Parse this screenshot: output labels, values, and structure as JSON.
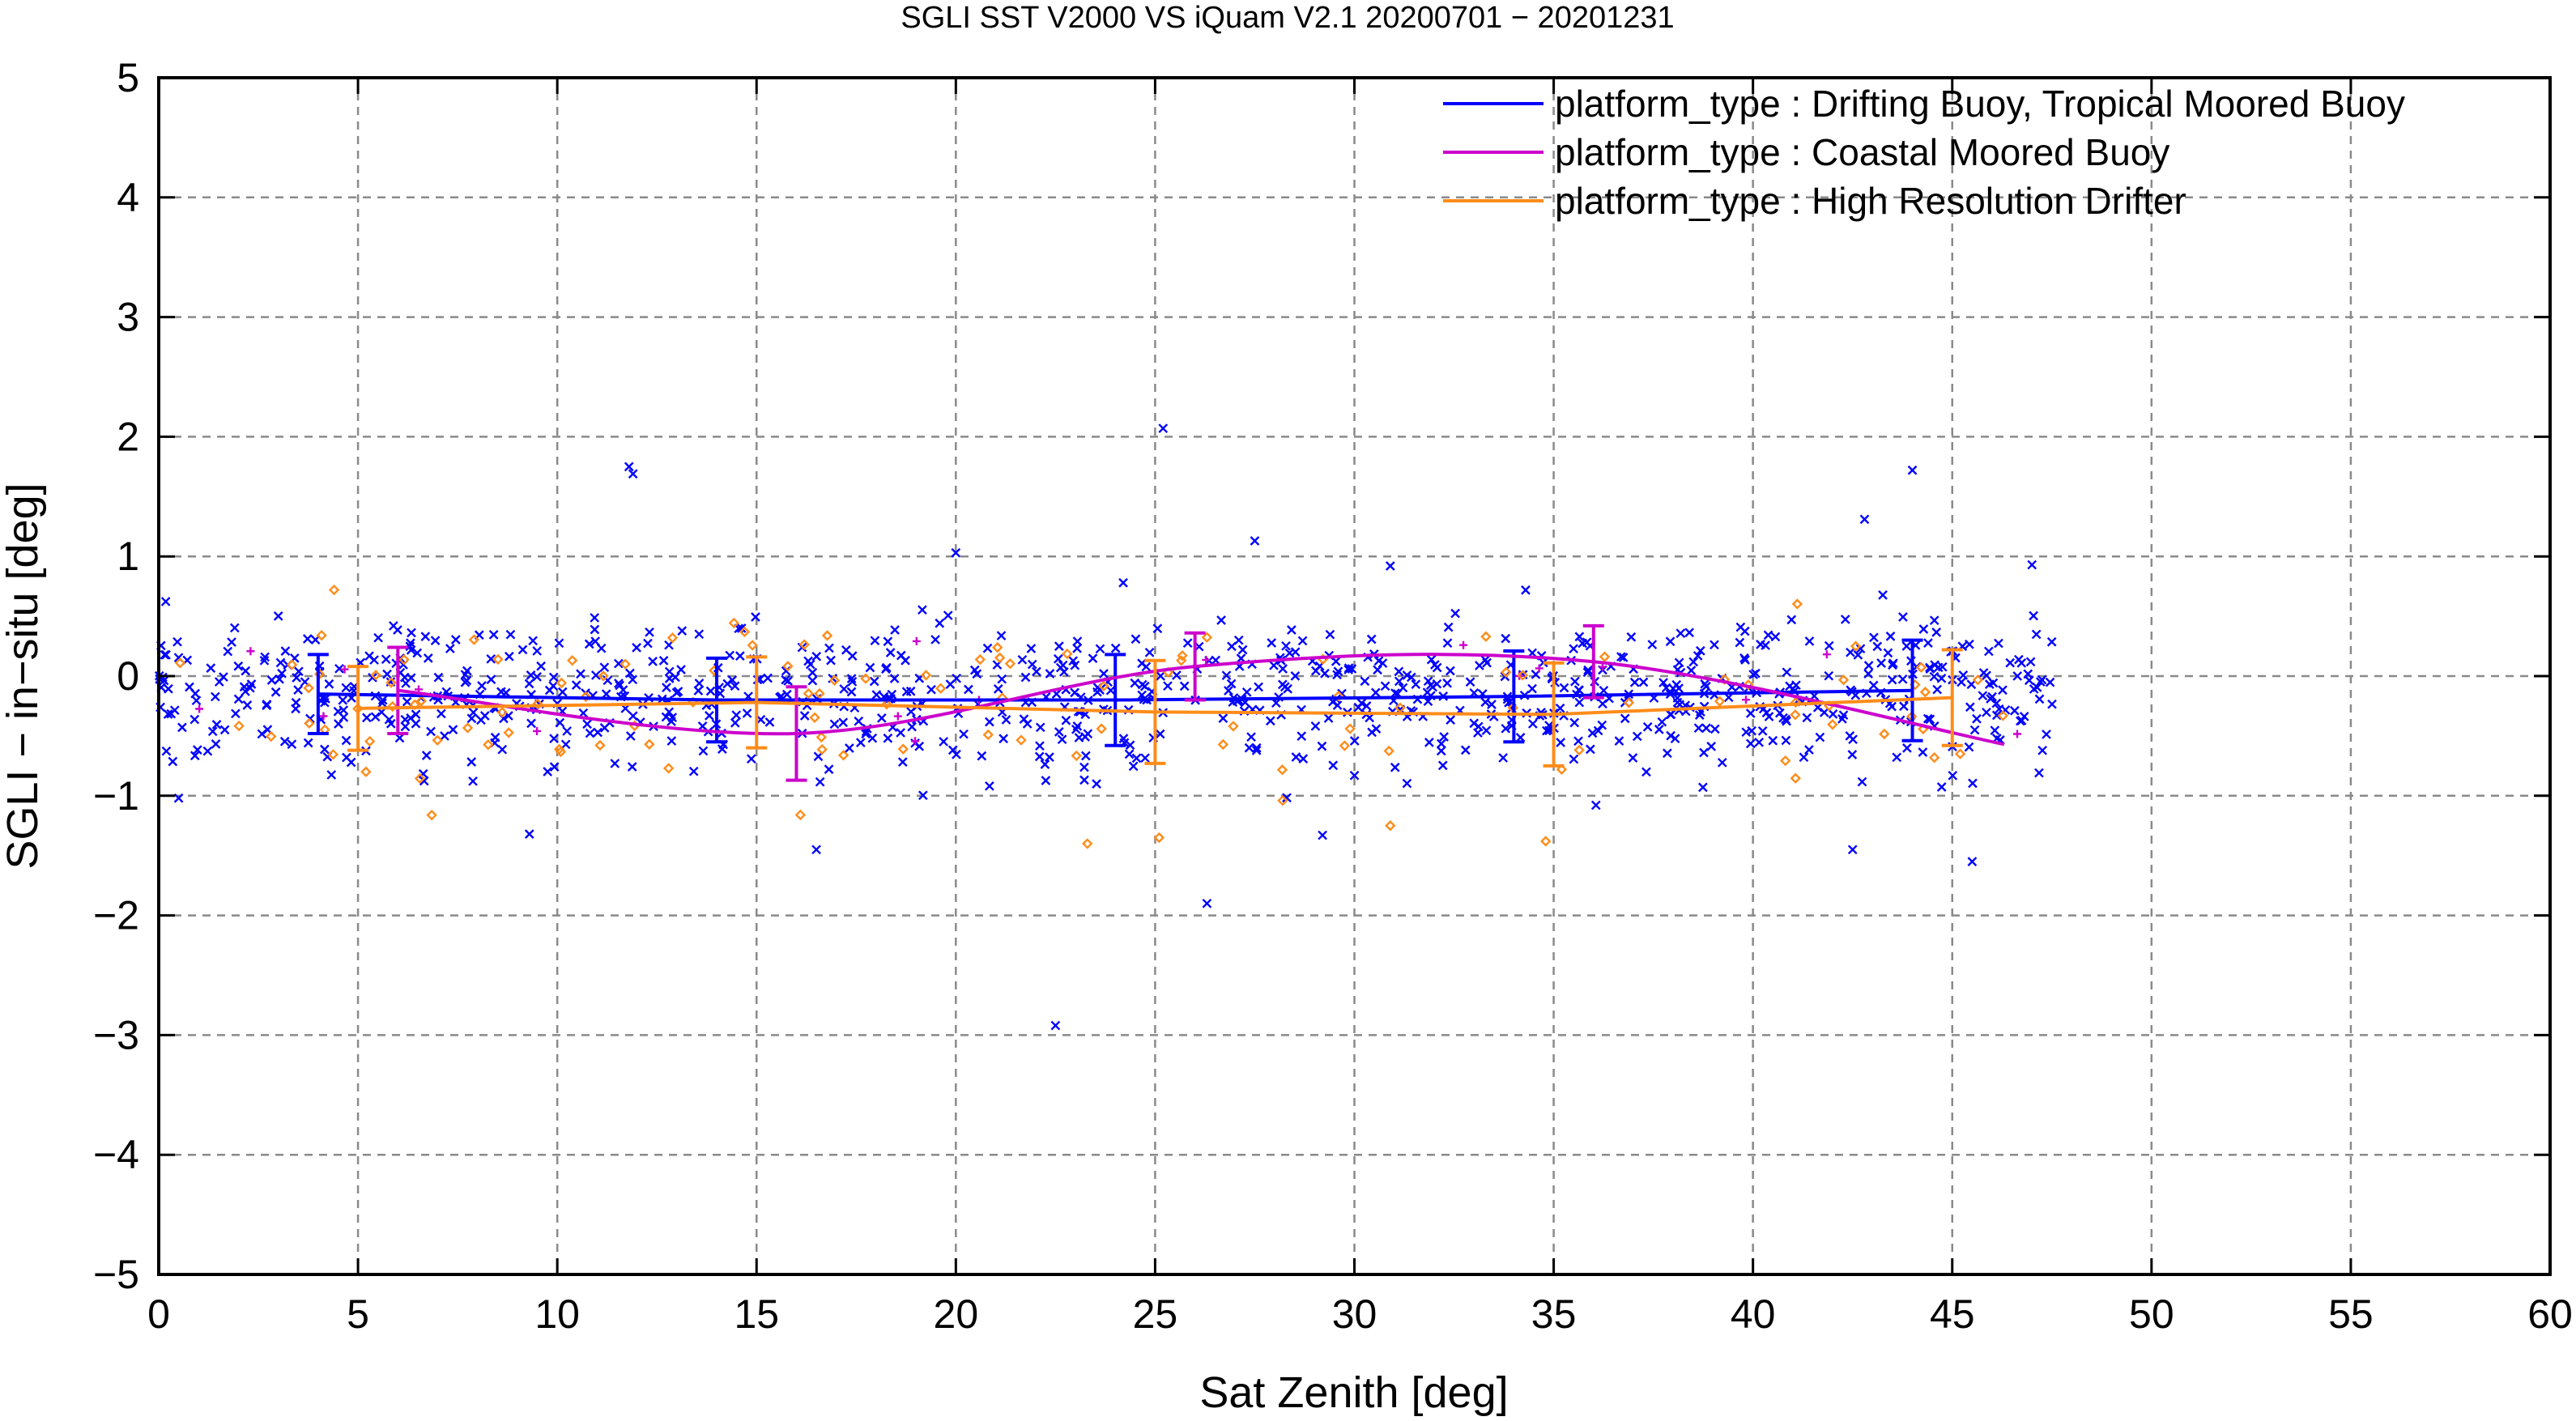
{
  "chart_data": {
    "type": "scatter",
    "title": "SGLI SST V2000 VS iQuam V2.1 20200701 − 20201231",
    "xlabel": "Sat Zenith [deg]",
    "ylabel": "SGLI − in−situ [deg]",
    "xlim": [
      0,
      60
    ],
    "ylim": [
      -5,
      5
    ],
    "x_ticks": [
      "0",
      "5",
      "10",
      "15",
      "20",
      "25",
      "30",
      "35",
      "40",
      "45",
      "50",
      "55",
      "60"
    ],
    "y_ticks": [
      "−5",
      "−4",
      "−3",
      "−2",
      "−1",
      "0",
      "1",
      "2",
      "3",
      "4",
      "5"
    ],
    "grid": true,
    "legend_position": "top-right",
    "series": [
      {
        "name": "platform_type : Drifting Buoy, Tropical Moored Buoy",
        "color": "#0000ff",
        "marker": "x",
        "line": {
          "x": [
            4,
            14,
            24,
            34,
            44
          ],
          "y": [
            -0.15,
            -0.2,
            -0.2,
            -0.17,
            -0.12
          ],
          "err": [
            0.33,
            0.35,
            0.38,
            0.38,
            0.42
          ]
        },
        "outliers": [
          {
            "x": 11.8,
            "y": 1.75
          },
          {
            "x": 11.9,
            "y": 1.69
          },
          {
            "x": 25.2,
            "y": 2.07
          },
          {
            "x": 20.0,
            "y": 1.03
          },
          {
            "x": 22.5,
            "y": -2.92
          },
          {
            "x": 26.3,
            "y": -1.9
          },
          {
            "x": 44.0,
            "y": 1.72
          },
          {
            "x": 42.8,
            "y": 1.31
          },
          {
            "x": 27.5,
            "y": 1.13
          },
          {
            "x": 45.5,
            "y": -1.55
          },
          {
            "x": 42.5,
            "y": -1.45
          },
          {
            "x": 9.3,
            "y": -1.32
          },
          {
            "x": 29.2,
            "y": -1.33
          },
          {
            "x": 16.5,
            "y": -1.45
          },
          {
            "x": 47.0,
            "y": 0.93
          },
          {
            "x": 24.2,
            "y": 0.78
          },
          {
            "x": 30.9,
            "y": 0.92
          },
          {
            "x": 0.5,
            "y": -1.02
          }
        ]
      },
      {
        "name": "platform_type : Coastal Moored Buoy",
        "color": "#cc00cc",
        "marker": "+",
        "line": {
          "x": [
            6,
            16,
            26,
            36,
            46.3
          ],
          "y": [
            -0.12,
            -0.48,
            0.08,
            0.12,
            -0.57
          ],
          "err": [
            0.36,
            0.39,
            0.28,
            0.3,
            0.0
          ]
        }
      },
      {
        "name": "platform_type : High Resolution Drifter",
        "color": "#ff8c1a",
        "marker": "diamond",
        "line": {
          "x": [
            5,
            15,
            25,
            35,
            45
          ],
          "y": [
            -0.27,
            -0.22,
            -0.3,
            -0.32,
            -0.18
          ],
          "err": [
            0.35,
            0.38,
            0.43,
            0.43,
            0.4
          ]
        },
        "outliers": [
          {
            "x": 23.3,
            "y": -1.4
          },
          {
            "x": 25.1,
            "y": -1.35
          },
          {
            "x": 34.8,
            "y": -1.38
          },
          {
            "x": 30.9,
            "y": -1.25
          },
          {
            "x": 16.1,
            "y": -1.16
          },
          {
            "x": 28.2,
            "y": -1.04
          },
          {
            "x": 4.4,
            "y": 0.72
          },
          {
            "x": 14.7,
            "y": 0.37
          },
          {
            "x": 35.2,
            "y": -0.78
          },
          {
            "x": 5.2,
            "y": -0.8
          },
          {
            "x": 45.2,
            "y": -0.65
          },
          {
            "x": 33.3,
            "y": 0.33
          }
        ]
      }
    ]
  }
}
